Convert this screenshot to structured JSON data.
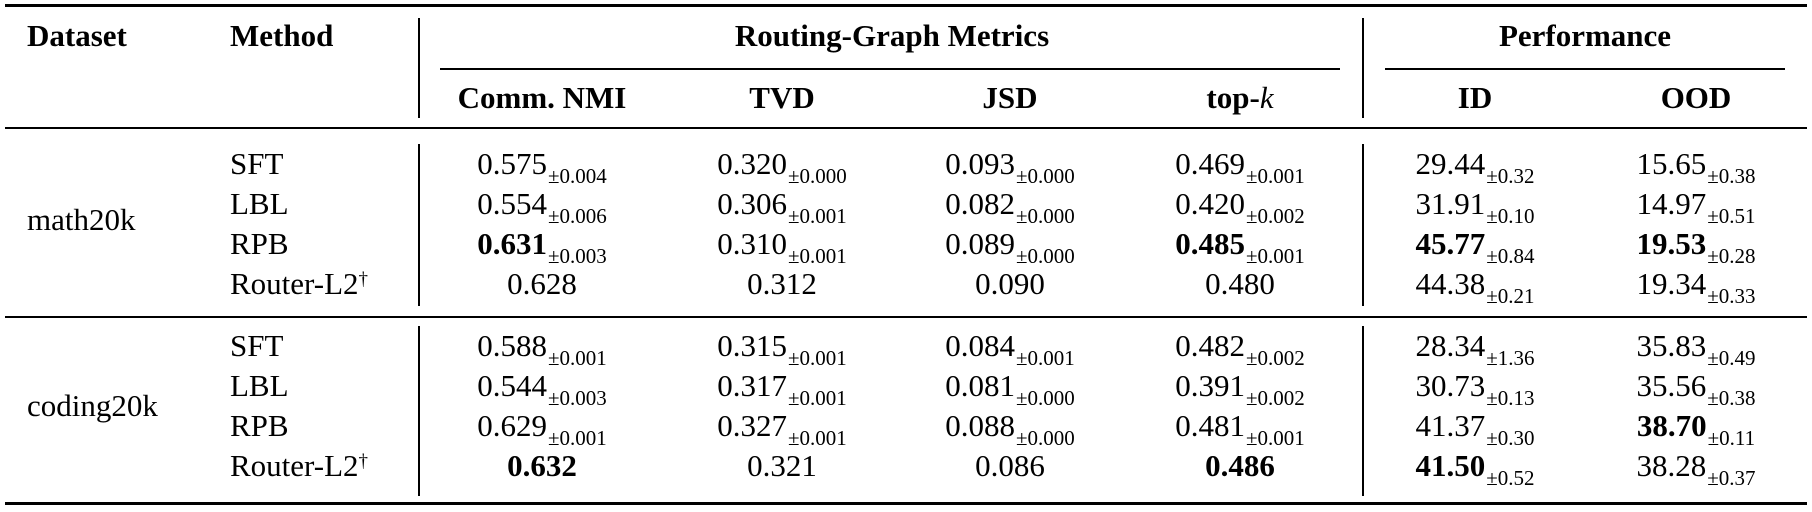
{
  "table": {
    "headers": {
      "dataset": "Dataset",
      "method": "Method",
      "group_routing": "Routing-Graph Metrics",
      "group_performance": "Performance",
      "comm_nmi": "Comm. NMI",
      "tvd": "TVD",
      "jsd": "JSD",
      "topk_prefix": "top-",
      "topk_k": "k",
      "id": "ID",
      "ood": "OOD"
    },
    "groups": [
      {
        "dataset": "math20k",
        "rows": [
          {
            "method": "SFT",
            "dagger": false,
            "cells": [
              {
                "v": "0.575",
                "s": "±0.004",
                "bold": false
              },
              {
                "v": "0.320",
                "s": "±0.000",
                "bold": false
              },
              {
                "v": "0.093",
                "s": "±0.000",
                "bold": false
              },
              {
                "v": "0.469",
                "s": "±0.001",
                "bold": false
              },
              {
                "v": "29.44",
                "s": "±0.32",
                "bold": false
              },
              {
                "v": "15.65",
                "s": "±0.38",
                "bold": false
              }
            ]
          },
          {
            "method": "LBL",
            "dagger": false,
            "cells": [
              {
                "v": "0.554",
                "s": "±0.006",
                "bold": false
              },
              {
                "v": "0.306",
                "s": "±0.001",
                "bold": false
              },
              {
                "v": "0.082",
                "s": "±0.000",
                "bold": false
              },
              {
                "v": "0.420",
                "s": "±0.002",
                "bold": false
              },
              {
                "v": "31.91",
                "s": "±0.10",
                "bold": false
              },
              {
                "v": "14.97",
                "s": "±0.51",
                "bold": false
              }
            ]
          },
          {
            "method": "RPB",
            "dagger": false,
            "cells": [
              {
                "v": "0.631",
                "s": "±0.003",
                "bold": true
              },
              {
                "v": "0.310",
                "s": "±0.001",
                "bold": false
              },
              {
                "v": "0.089",
                "s": "±0.000",
                "bold": false
              },
              {
                "v": "0.485",
                "s": "±0.001",
                "bold": true
              },
              {
                "v": "45.77",
                "s": "±0.84",
                "bold": true
              },
              {
                "v": "19.53",
                "s": "±0.28",
                "bold": true
              }
            ]
          },
          {
            "method": "Router-L2",
            "dagger": true,
            "cells": [
              {
                "v": "0.628",
                "s": "",
                "bold": false
              },
              {
                "v": "0.312",
                "s": "",
                "bold": false
              },
              {
                "v": "0.090",
                "s": "",
                "bold": false
              },
              {
                "v": "0.480",
                "s": "",
                "bold": false
              },
              {
                "v": "44.38",
                "s": "±0.21",
                "bold": false
              },
              {
                "v": "19.34",
                "s": "±0.33",
                "bold": false
              }
            ]
          }
        ]
      },
      {
        "dataset": "coding20k",
        "rows": [
          {
            "method": "SFT",
            "dagger": false,
            "cells": [
              {
                "v": "0.588",
                "s": "±0.001",
                "bold": false
              },
              {
                "v": "0.315",
                "s": "±0.001",
                "bold": false
              },
              {
                "v": "0.084",
                "s": "±0.001",
                "bold": false
              },
              {
                "v": "0.482",
                "s": "±0.002",
                "bold": false
              },
              {
                "v": "28.34",
                "s": "±1.36",
                "bold": false
              },
              {
                "v": "35.83",
                "s": "±0.49",
                "bold": false
              }
            ]
          },
          {
            "method": "LBL",
            "dagger": false,
            "cells": [
              {
                "v": "0.544",
                "s": "±0.003",
                "bold": false
              },
              {
                "v": "0.317",
                "s": "±0.001",
                "bold": false
              },
              {
                "v": "0.081",
                "s": "±0.000",
                "bold": false
              },
              {
                "v": "0.391",
                "s": "±0.002",
                "bold": false
              },
              {
                "v": "30.73",
                "s": "±0.13",
                "bold": false
              },
              {
                "v": "35.56",
                "s": "±0.38",
                "bold": false
              }
            ]
          },
          {
            "method": "RPB",
            "dagger": false,
            "cells": [
              {
                "v": "0.629",
                "s": "±0.001",
                "bold": false
              },
              {
                "v": "0.327",
                "s": "±0.001",
                "bold": false
              },
              {
                "v": "0.088",
                "s": "±0.000",
                "bold": false
              },
              {
                "v": "0.481",
                "s": "±0.001",
                "bold": false
              },
              {
                "v": "41.37",
                "s": "±0.30",
                "bold": false
              },
              {
                "v": "38.70",
                "s": "±0.11",
                "bold": true
              }
            ]
          },
          {
            "method": "Router-L2",
            "dagger": true,
            "cells": [
              {
                "v": "0.632",
                "s": "",
                "bold": true
              },
              {
                "v": "0.321",
                "s": "",
                "bold": false
              },
              {
                "v": "0.086",
                "s": "",
                "bold": false
              },
              {
                "v": "0.486",
                "s": "",
                "bold": true
              },
              {
                "v": "41.50",
                "s": "±0.52",
                "bold": true
              },
              {
                "v": "38.28",
                "s": "±0.37",
                "bold": false
              }
            ]
          }
        ]
      }
    ],
    "dagger_mark": "†"
  }
}
